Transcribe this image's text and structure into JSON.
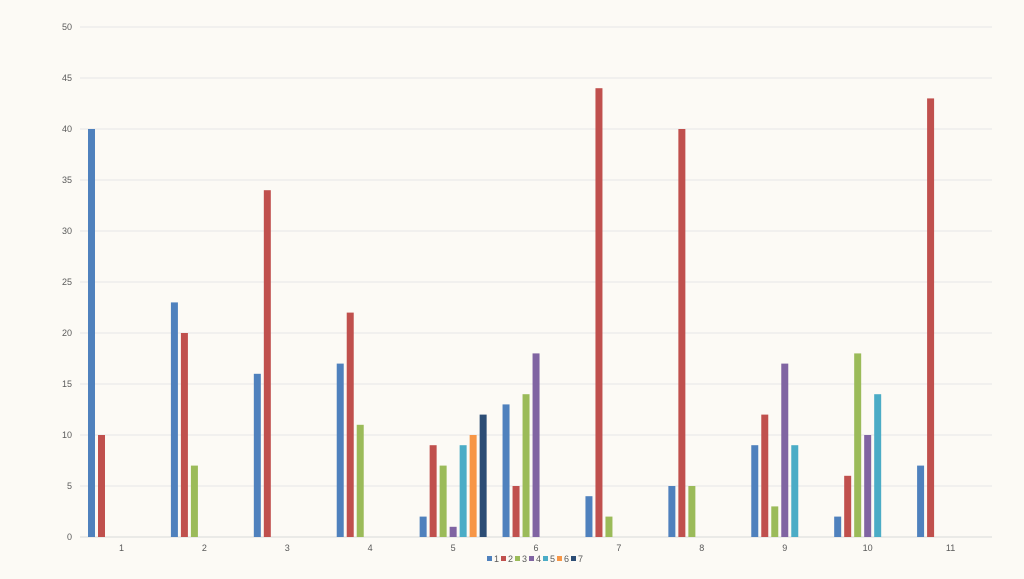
{
  "chart_data": {
    "type": "bar",
    "title": "",
    "xlabel": "",
    "ylabel": "",
    "categories": [
      "1",
      "2",
      "3",
      "4",
      "5",
      "6",
      "7",
      "8",
      "9",
      "10",
      "11"
    ],
    "ylim": [
      0,
      50
    ],
    "yticks": [
      0,
      5,
      10,
      15,
      20,
      25,
      30,
      35,
      40,
      45,
      50
    ],
    "grid": true,
    "legend_position": "bottom",
    "series": [
      {
        "name": "1",
        "color": "#4F81BD",
        "values": [
          40,
          23,
          16,
          17,
          2,
          13,
          4,
          5,
          9,
          2,
          7
        ]
      },
      {
        "name": "2",
        "color": "#C0504D",
        "values": [
          10,
          20,
          34,
          22,
          9,
          5,
          44,
          40,
          12,
          6,
          43
        ]
      },
      {
        "name": "3",
        "color": "#9BBB59",
        "values": [
          null,
          7,
          null,
          11,
          7,
          14,
          2,
          5,
          3,
          18,
          null
        ]
      },
      {
        "name": "4",
        "color": "#8064A2",
        "values": [
          null,
          null,
          null,
          null,
          1,
          18,
          null,
          null,
          17,
          10,
          null
        ]
      },
      {
        "name": "5",
        "color": "#4BACC6",
        "values": [
          null,
          null,
          null,
          null,
          9,
          null,
          null,
          null,
          9,
          14,
          null
        ]
      },
      {
        "name": "6",
        "color": "#F79646",
        "values": [
          null,
          null,
          null,
          null,
          10,
          null,
          null,
          null,
          null,
          null,
          null
        ]
      },
      {
        "name": "7",
        "color": "#2C4D75",
        "values": [
          null,
          null,
          null,
          null,
          12,
          null,
          null,
          null,
          null,
          null,
          null
        ]
      }
    ]
  }
}
